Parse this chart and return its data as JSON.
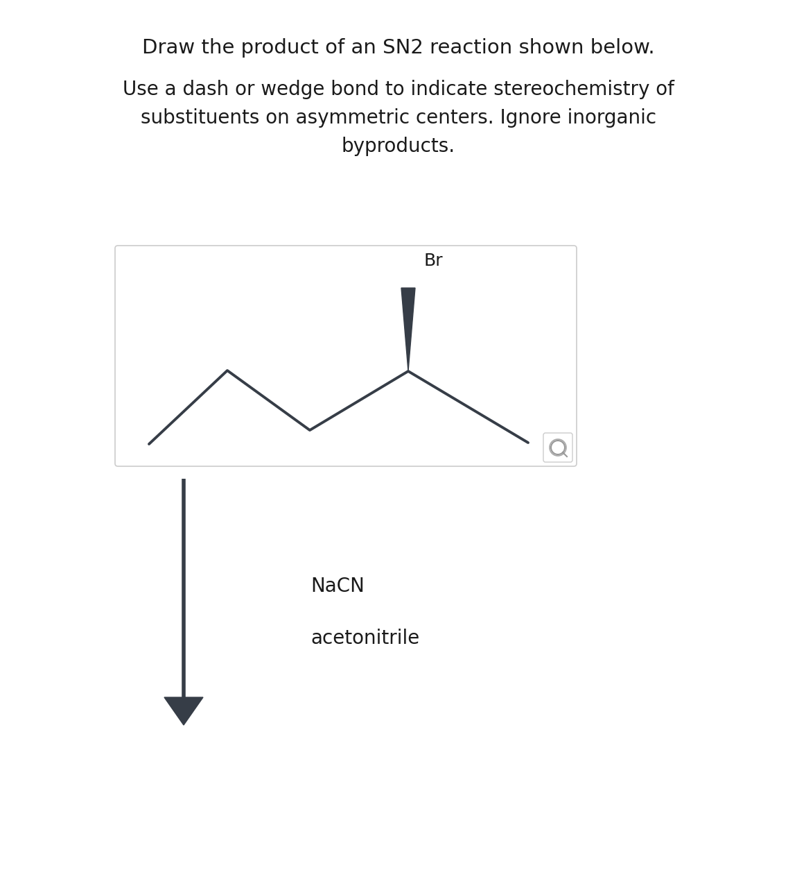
{
  "title1": "Draw the product of an SN2 reaction shown below.",
  "title2": "Use a dash or wedge bond to indicate stereochemistry of\nsubstituents on asymmetric centers. Ignore inorganic\nbyproducts.",
  "reagent1": "NaCN",
  "reagent2": "acetonitrile",
  "label_Br": "Br",
  "molecule_color": "#363d47",
  "text_color": "#1a1a1a",
  "bg_color": "#ffffff",
  "box_bg": "#ffffff",
  "box_border": "#cccccc",
  "arrow_color": "#363d47",
  "title1_fontsize": 21,
  "title2_fontsize": 20,
  "reagent_fontsize": 20,
  "br_fontsize": 18
}
